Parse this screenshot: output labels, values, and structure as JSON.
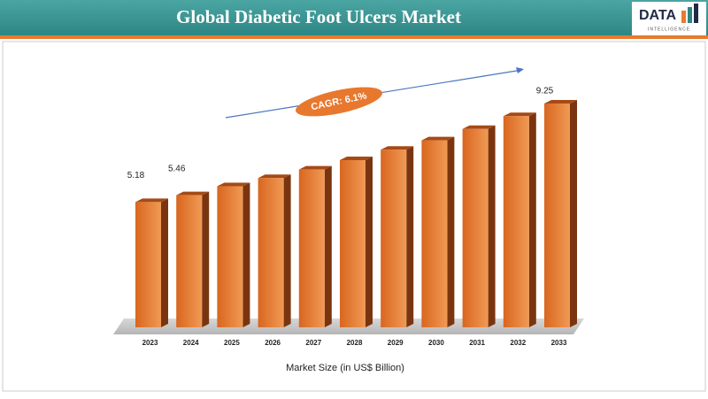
{
  "chart_data": {
    "type": "bar3d",
    "title": "Global Diabetic Foot Ulcers Market",
    "x_label": "Market Size (in US$ Billion)",
    "annotation": "CAGR: 6.1%",
    "categories": [
      "2023",
      "2024",
      "2025",
      "2026",
      "2027",
      "2028",
      "2029",
      "2030",
      "2031",
      "2032",
      "2033"
    ],
    "values": [
      5.18,
      5.46,
      5.83,
      6.17,
      6.52,
      6.91,
      7.34,
      7.73,
      8.2,
      8.73,
      9.25
    ],
    "value_labels": [
      "5.18",
      "5.46",
      null,
      null,
      null,
      null,
      null,
      null,
      null,
      null,
      "9.25"
    ],
    "color": "#e8782e"
  },
  "logo": {
    "text": "DATA",
    "subtext": "INTELLIGENCE"
  }
}
